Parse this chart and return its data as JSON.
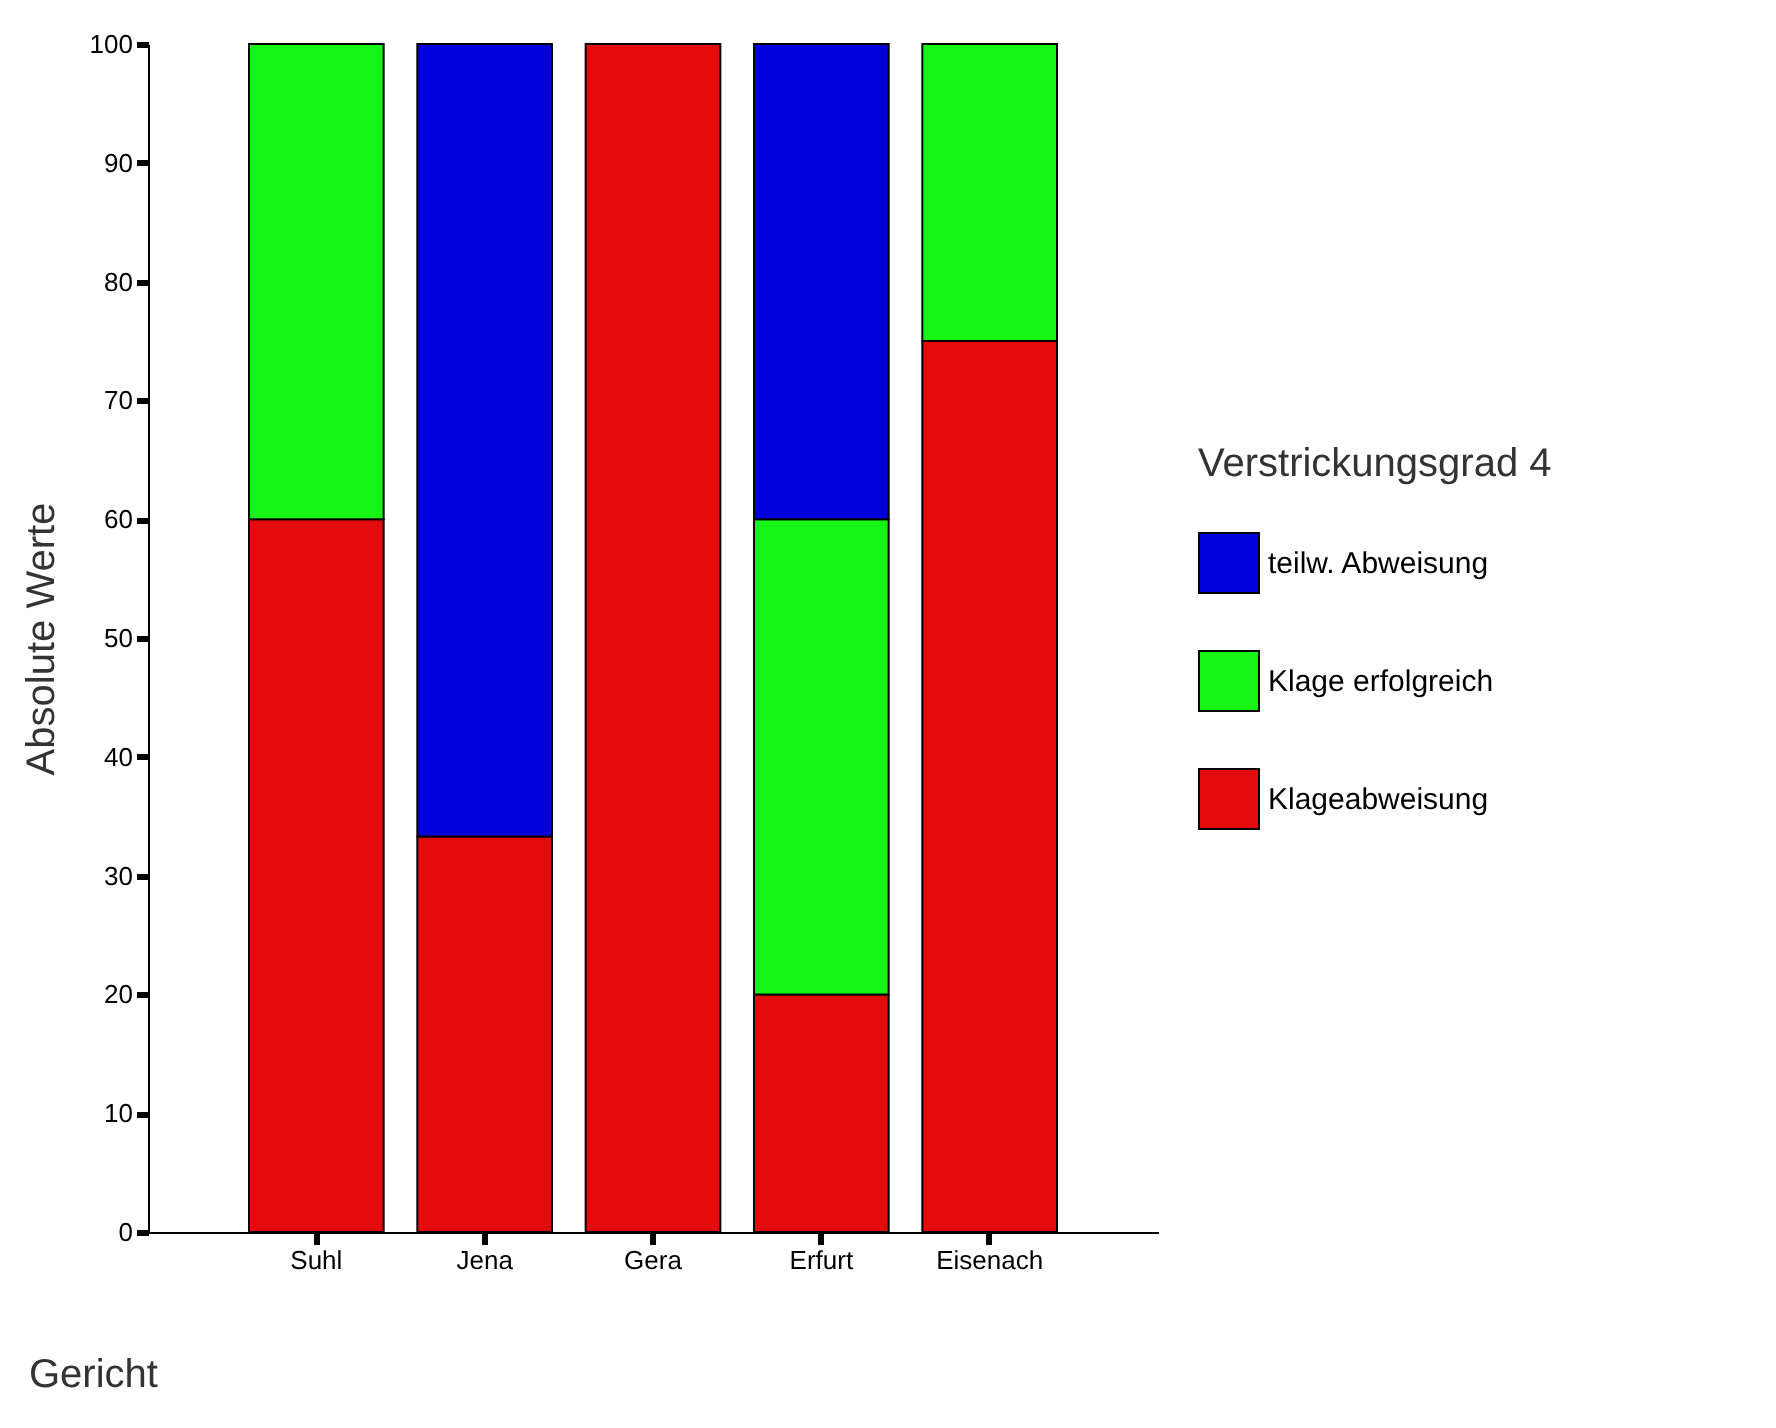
{
  "chart_data": {
    "type": "bar",
    "stacked": true,
    "xlabel": "Gericht",
    "ylabel": "Absolute Werte",
    "legend_title": "Verstrickungsgrad 4",
    "legend": "right",
    "grid": false,
    "categories": [
      "Suhl",
      "Jena",
      "Gera",
      "Erfurt",
      "Eisenach"
    ],
    "ylim": [
      0,
      100
    ],
    "yticks": [
      0,
      10,
      20,
      30,
      40,
      50,
      60,
      70,
      80,
      90,
      100
    ],
    "series": [
      {
        "name": "Klageabweisung",
        "color": "#e30b0b",
        "values": [
          60,
          33.3,
          100,
          20,
          75
        ]
      },
      {
        "name": "Klage erfolgreich",
        "color": "#15f415",
        "values": [
          40,
          0,
          0,
          40,
          25
        ]
      },
      {
        "name": "teilw. Abweisung",
        "color": "#0000dc",
        "values": [
          0,
          66.7,
          0,
          40,
          0
        ]
      }
    ]
  }
}
